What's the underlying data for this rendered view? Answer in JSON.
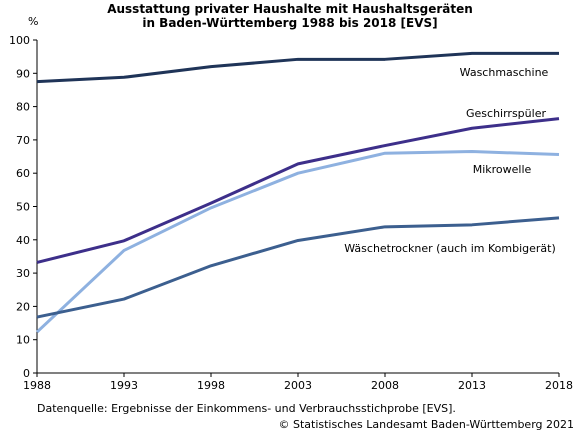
{
  "chart_data": {
    "type": "line",
    "title_line1": "Ausstattung privater Haushalte mit Haushaltsgeräten",
    "title_line2": "in Baden-Württemberg 1988 bis 2018  [EVS]",
    "ylabel": "%",
    "xlabel": "",
    "ylim": [
      0,
      100
    ],
    "yticks": [
      0,
      10,
      20,
      30,
      40,
      50,
      60,
      70,
      80,
      90,
      100
    ],
    "x": [
      "1988",
      "1993",
      "1998",
      "2003",
      "2008",
      "2013",
      "2018"
    ],
    "grid": false,
    "series": [
      {
        "name": "Waschmaschine",
        "color": "#1f3458",
        "values": [
          87.5,
          88.8,
          92.0,
          94.2,
          94.2,
          96.0,
          96.0
        ]
      },
      {
        "name": "Geschirrspüler",
        "color": "#3d2f8a",
        "values": [
          33.2,
          39.7,
          51.0,
          62.8,
          68.3,
          73.5,
          76.4
        ]
      },
      {
        "name": "Mikrowelle",
        "color": "#8eb1e0",
        "values": [
          12.3,
          36.8,
          49.6,
          60.0,
          66.0,
          66.5,
          65.6
        ]
      },
      {
        "name": "Wäschetrockner (auch im Kombigerät)",
        "color": "#3c5f8f",
        "values": [
          16.8,
          22.2,
          32.2,
          39.8,
          43.9,
          44.5,
          46.6
        ]
      }
    ]
  },
  "footer": {
    "source": "Datenquelle: Ergebnisse der Einkommens- und Verbrauchsstichprobe [EVS].",
    "copyright": "© Statistisches Landesamt Baden-Württemberg 2021"
  }
}
